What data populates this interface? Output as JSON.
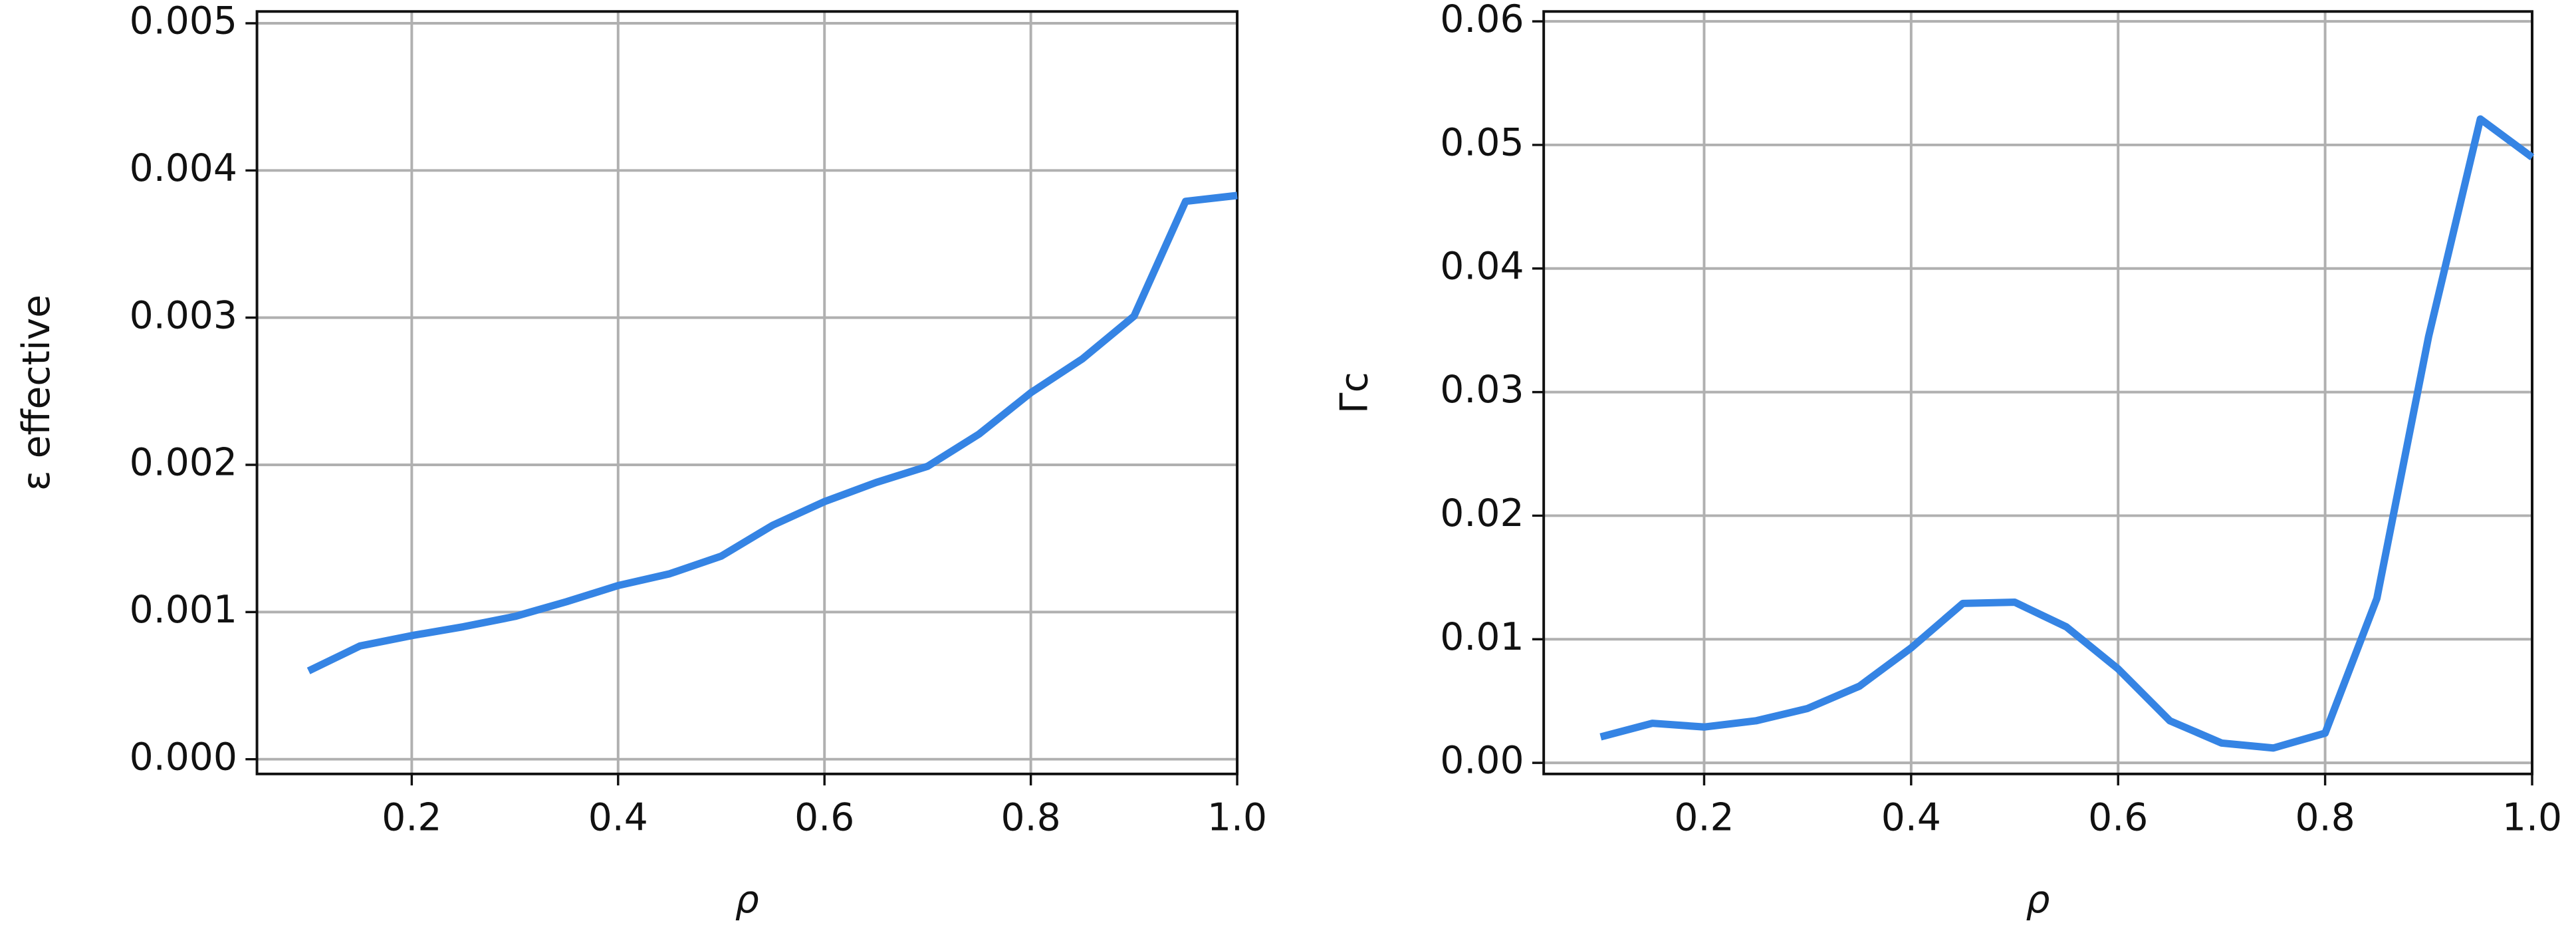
{
  "chart_data": [
    {
      "type": "line",
      "xlabel": "ρ",
      "ylabel": "ε effective",
      "x": [
        0.1,
        0.15,
        0.2,
        0.25,
        0.3,
        0.35,
        0.4,
        0.45,
        0.5,
        0.55,
        0.6,
        0.65,
        0.7,
        0.75,
        0.8,
        0.85,
        0.9,
        0.95,
        1.0
      ],
      "series": [
        {
          "color": "#3584e4",
          "values": [
            0.0006,
            0.00077,
            0.00084,
            0.0009,
            0.00097,
            0.00107,
            0.00118,
            0.00126,
            0.00138,
            0.00159,
            0.00175,
            0.00188,
            0.00199,
            0.00221,
            0.00249,
            0.00272,
            0.00301,
            0.00379,
            0.00383
          ]
        }
      ],
      "xlim": [
        0.05,
        1.0
      ],
      "ylim": [
        -0.0001,
        0.00508
      ],
      "xticks": [
        0.2,
        0.4,
        0.6,
        0.8,
        {
          "value": 1.0,
          "label": "1.0"
        }
      ],
      "yticks": [
        {
          "value": 0,
          "label": "0.000"
        },
        {
          "value": 0.001,
          "label": "0.001"
        },
        {
          "value": 0.002,
          "label": "0.002"
        },
        {
          "value": 0.003,
          "label": "0.003"
        },
        {
          "value": 0.004,
          "label": "0.004"
        },
        {
          "value": 0.005,
          "label": "0.005"
        }
      ],
      "grid": true
    },
    {
      "type": "line",
      "xlabel": "ρ",
      "ylabel": "Γc",
      "x": [
        0.1,
        0.15,
        0.2,
        0.25,
        0.3,
        0.35,
        0.4,
        0.45,
        0.5,
        0.55,
        0.6,
        0.65,
        0.7,
        0.75,
        0.8,
        0.85,
        0.9,
        0.95,
        1.0
      ],
      "series": [
        {
          "color": "#3584e4",
          "values": [
            0.0021,
            0.0032,
            0.0029,
            0.0034,
            0.0044,
            0.0062,
            0.0093,
            0.0129,
            0.013,
            0.011,
            0.0076,
            0.0034,
            0.0016,
            0.0012,
            0.0024,
            0.0133,
            0.0345,
            0.0521,
            0.049
          ]
        }
      ],
      "xlim": [
        0.045,
        1.0
      ],
      "ylim": [
        -0.0009,
        0.0608
      ],
      "xticks": [
        0.2,
        0.4,
        0.6,
        0.8,
        {
          "value": 1.0,
          "label": "1.0"
        }
      ],
      "yticks": [
        {
          "value": 0,
          "label": "0.00"
        },
        {
          "value": 0.01,
          "label": "0.01"
        },
        {
          "value": 0.02,
          "label": "0.02"
        },
        {
          "value": 0.03,
          "label": "0.03"
        },
        {
          "value": 0.04,
          "label": "0.04"
        },
        {
          "value": 0.05,
          "label": "0.05"
        },
        {
          "value": 0.06,
          "label": "0.06"
        }
      ],
      "grid": true
    }
  ]
}
